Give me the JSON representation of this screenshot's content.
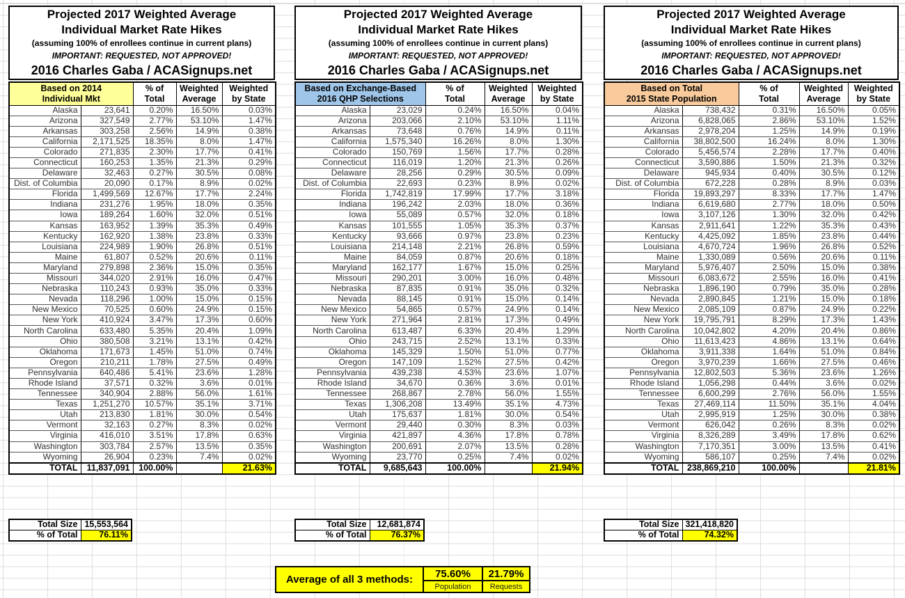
{
  "title_block": {
    "line1": "Projected 2017 Weighted Average",
    "line2": "Individual Market Rate Hikes",
    "line3": "(assuming 100% of enrollees continue in current plans)",
    "line4": "IMPORTANT: REQUESTED, NOT APPROVED!",
    "line5": "2016 Charles Gaba / ACASignups.net"
  },
  "columns": {
    "pct_line1": "% of",
    "pct_line2": "Total",
    "wavg_line1": "Weighted",
    "wavg_line2": "Average",
    "wst_line1": "Weighted",
    "wst_line2": "by State"
  },
  "summary_labels": {
    "total_size": "Total Size",
    "pct_of_total": "% of Total"
  },
  "colors": {
    "highlight": "#FFFF00"
  },
  "tables": [
    {
      "source_line1": "Based on 2014",
      "source_line2": "Individual Mkt",
      "header_color": "#FFFF99",
      "rows": [
        {
          "state": "Alaska",
          "size": "23,641",
          "pct": "0.20%",
          "wavg": "16.50%",
          "wstate": "0.03%"
        },
        {
          "state": "Arizona",
          "size": "327,549",
          "pct": "2.77%",
          "wavg": "53.10%",
          "wstate": "1.47%"
        },
        {
          "state": "Arkansas",
          "size": "303,258",
          "pct": "2.56%",
          "wavg": "14.9%",
          "wstate": "0.38%"
        },
        {
          "state": "California",
          "size": "2,171,525",
          "pct": "18.35%",
          "wavg": "8.0%",
          "wstate": "1.47%"
        },
        {
          "state": "Colorado",
          "size": "271,835",
          "pct": "2.30%",
          "wavg": "17.7%",
          "wstate": "0.41%"
        },
        {
          "state": "Connecticut",
          "size": "160,253",
          "pct": "1.35%",
          "wavg": "21.3%",
          "wstate": "0.29%"
        },
        {
          "state": "Delaware",
          "size": "32,463",
          "pct": "0.27%",
          "wavg": "30.5%",
          "wstate": "0.08%"
        },
        {
          "state": "Dist. of Columbia",
          "size": "20,090",
          "pct": "0.17%",
          "wavg": "8.9%",
          "wstate": "0.02%"
        },
        {
          "state": "Florida",
          "size": "1,499,569",
          "pct": "12.67%",
          "wavg": "17.7%",
          "wstate": "2.24%"
        },
        {
          "state": "Indiana",
          "size": "231,276",
          "pct": "1.95%",
          "wavg": "18.0%",
          "wstate": "0.35%"
        },
        {
          "state": "Iowa",
          "size": "189,264",
          "pct": "1.60%",
          "wavg": "32.0%",
          "wstate": "0.51%"
        },
        {
          "state": "Kansas",
          "size": "163,952",
          "pct": "1.39%",
          "wavg": "35.3%",
          "wstate": "0.49%"
        },
        {
          "state": "Kentucky",
          "size": "162,920",
          "pct": "1.38%",
          "wavg": "23.8%",
          "wstate": "0.33%"
        },
        {
          "state": "Louisiana",
          "size": "224,989",
          "pct": "1.90%",
          "wavg": "26.8%",
          "wstate": "0.51%"
        },
        {
          "state": "Maine",
          "size": "61,807",
          "pct": "0.52%",
          "wavg": "20.6%",
          "wstate": "0.11%"
        },
        {
          "state": "Maryland",
          "size": "279,898",
          "pct": "2.36%",
          "wavg": "15.0%",
          "wstate": "0.35%"
        },
        {
          "state": "Missouri",
          "size": "344,020",
          "pct": "2.91%",
          "wavg": "16.0%",
          "wstate": "0.47%"
        },
        {
          "state": "Nebraska",
          "size": "110,243",
          "pct": "0.93%",
          "wavg": "35.0%",
          "wstate": "0.33%"
        },
        {
          "state": "Nevada",
          "size": "118,296",
          "pct": "1.00%",
          "wavg": "15.0%",
          "wstate": "0.15%"
        },
        {
          "state": "New Mexico",
          "size": "70,525",
          "pct": "0.60%",
          "wavg": "24.9%",
          "wstate": "0.15%"
        },
        {
          "state": "New York",
          "size": "410,924",
          "pct": "3.47%",
          "wavg": "17.3%",
          "wstate": "0.60%"
        },
        {
          "state": "North Carolina",
          "size": "633,480",
          "pct": "5.35%",
          "wavg": "20.4%",
          "wstate": "1.09%"
        },
        {
          "state": "Ohio",
          "size": "380,508",
          "pct": "3.21%",
          "wavg": "13.1%",
          "wstate": "0.42%"
        },
        {
          "state": "Oklahoma",
          "size": "171,673",
          "pct": "1.45%",
          "wavg": "51.0%",
          "wstate": "0.74%"
        },
        {
          "state": "Oregon",
          "size": "210,211",
          "pct": "1.78%",
          "wavg": "27.5%",
          "wstate": "0.49%"
        },
        {
          "state": "Pennsylvania",
          "size": "640,486",
          "pct": "5.41%",
          "wavg": "23.6%",
          "wstate": "1.28%"
        },
        {
          "state": "Rhode Island",
          "size": "37,571",
          "pct": "0.32%",
          "wavg": "3.6%",
          "wstate": "0.01%"
        },
        {
          "state": "Tennessee",
          "size": "340,904",
          "pct": "2.88%",
          "wavg": "56.0%",
          "wstate": "1.61%"
        },
        {
          "state": "Texas",
          "size": "1,251,270",
          "pct": "10.57%",
          "wavg": "35.1%",
          "wstate": "3.71%"
        },
        {
          "state": "Utah",
          "size": "213,830",
          "pct": "1.81%",
          "wavg": "30.0%",
          "wstate": "0.54%"
        },
        {
          "state": "Vermont",
          "size": "32,163",
          "pct": "0.27%",
          "wavg": "8.3%",
          "wstate": "0.02%"
        },
        {
          "state": "Virginia",
          "size": "416,010",
          "pct": "3.51%",
          "wavg": "17.8%",
          "wstate": "0.63%"
        },
        {
          "state": "Washington",
          "size": "303,784",
          "pct": "2.57%",
          "wavg": "13.5%",
          "wstate": "0.35%"
        },
        {
          "state": "Wyoming",
          "size": "26,904",
          "pct": "0.23%",
          "wavg": "7.4%",
          "wstate": "0.02%"
        }
      ],
      "total": {
        "label": "TOTAL",
        "size": "11,837,091",
        "pct": "100.00%",
        "wavg": "",
        "wstate": "21.63%"
      },
      "summary": {
        "total_size": "15,553,564",
        "pct_of_total": "76.11%"
      }
    },
    {
      "source_line1": "Based on Exchange-Based",
      "source_line2": "2016 QHP Selections",
      "header_color": "#9FC5E8",
      "rows": [
        {
          "state": "Alaska",
          "size": "23,029",
          "pct": "0.24%",
          "wavg": "16.50%",
          "wstate": "0.04%"
        },
        {
          "state": "Arizona",
          "size": "203,066",
          "pct": "2.10%",
          "wavg": "53.10%",
          "wstate": "1.11%"
        },
        {
          "state": "Arkansas",
          "size": "73,648",
          "pct": "0.76%",
          "wavg": "14.9%",
          "wstate": "0.11%"
        },
        {
          "state": "California",
          "size": "1,575,340",
          "pct": "16.26%",
          "wavg": "8.0%",
          "wstate": "1.30%"
        },
        {
          "state": "Colorado",
          "size": "150,769",
          "pct": "1.56%",
          "wavg": "17.7%",
          "wstate": "0.28%"
        },
        {
          "state": "Connecticut",
          "size": "116,019",
          "pct": "1.20%",
          "wavg": "21.3%",
          "wstate": "0.26%"
        },
        {
          "state": "Delaware",
          "size": "28,256",
          "pct": "0.29%",
          "wavg": "30.5%",
          "wstate": "0.09%"
        },
        {
          "state": "Dist. of Columbia",
          "size": "22,693",
          "pct": "0.23%",
          "wavg": "8.9%",
          "wstate": "0.02%"
        },
        {
          "state": "Florida",
          "size": "1,742,819",
          "pct": "17.99%",
          "wavg": "17.7%",
          "wstate": "3.18%"
        },
        {
          "state": "Indiana",
          "size": "196,242",
          "pct": "2.03%",
          "wavg": "18.0%",
          "wstate": "0.36%"
        },
        {
          "state": "Iowa",
          "size": "55,089",
          "pct": "0.57%",
          "wavg": "32.0%",
          "wstate": "0.18%"
        },
        {
          "state": "Kansas",
          "size": "101,555",
          "pct": "1.05%",
          "wavg": "35.3%",
          "wstate": "0.37%"
        },
        {
          "state": "Kentucky",
          "size": "93,666",
          "pct": "0.97%",
          "wavg": "23.8%",
          "wstate": "0.23%"
        },
        {
          "state": "Louisiana",
          "size": "214,148",
          "pct": "2.21%",
          "wavg": "26.8%",
          "wstate": "0.59%"
        },
        {
          "state": "Maine",
          "size": "84,059",
          "pct": "0.87%",
          "wavg": "20.6%",
          "wstate": "0.18%"
        },
        {
          "state": "Maryland",
          "size": "162,177",
          "pct": "1.67%",
          "wavg": "15.0%",
          "wstate": "0.25%"
        },
        {
          "state": "Missouri",
          "size": "290,201",
          "pct": "3.00%",
          "wavg": "16.0%",
          "wstate": "0.48%"
        },
        {
          "state": "Nebraska",
          "size": "87,835",
          "pct": "0.91%",
          "wavg": "35.0%",
          "wstate": "0.32%"
        },
        {
          "state": "Nevada",
          "size": "88,145",
          "pct": "0.91%",
          "wavg": "15.0%",
          "wstate": "0.14%"
        },
        {
          "state": "New Mexico",
          "size": "54,865",
          "pct": "0.57%",
          "wavg": "24.9%",
          "wstate": "0.14%"
        },
        {
          "state": "New York",
          "size": "271,964",
          "pct": "2.81%",
          "wavg": "17.3%",
          "wstate": "0.49%"
        },
        {
          "state": "North Carolina",
          "size": "613,487",
          "pct": "6.33%",
          "wavg": "20.4%",
          "wstate": "1.29%"
        },
        {
          "state": "Ohio",
          "size": "243,715",
          "pct": "2.52%",
          "wavg": "13.1%",
          "wstate": "0.33%"
        },
        {
          "state": "Oklahoma",
          "size": "145,329",
          "pct": "1.50%",
          "wavg": "51.0%",
          "wstate": "0.77%"
        },
        {
          "state": "Oregon",
          "size": "147,109",
          "pct": "1.52%",
          "wavg": "27.5%",
          "wstate": "0.42%"
        },
        {
          "state": "Pennsylvania",
          "size": "439,238",
          "pct": "4.53%",
          "wavg": "23.6%",
          "wstate": "1.07%"
        },
        {
          "state": "Rhode Island",
          "size": "34,670",
          "pct": "0.36%",
          "wavg": "3.6%",
          "wstate": "0.01%"
        },
        {
          "state": "Tennessee",
          "size": "268,867",
          "pct": "2.78%",
          "wavg": "56.0%",
          "wstate": "1.55%"
        },
        {
          "state": "Texas",
          "size": "1,306,208",
          "pct": "13.49%",
          "wavg": "35.1%",
          "wstate": "4.73%"
        },
        {
          "state": "Utah",
          "size": "175,637",
          "pct": "1.81%",
          "wavg": "30.0%",
          "wstate": "0.54%"
        },
        {
          "state": "Vermont",
          "size": "29,440",
          "pct": "0.30%",
          "wavg": "8.3%",
          "wstate": "0.03%"
        },
        {
          "state": "Virginia",
          "size": "421,897",
          "pct": "4.36%",
          "wavg": "17.8%",
          "wstate": "0.78%"
        },
        {
          "state": "Washington",
          "size": "200,691",
          "pct": "2.07%",
          "wavg": "13.5%",
          "wstate": "0.28%"
        },
        {
          "state": "Wyoming",
          "size": "23,770",
          "pct": "0.25%",
          "wavg": "7.4%",
          "wstate": "0.02%"
        }
      ],
      "total": {
        "label": "TOTAL",
        "size": "9,685,643",
        "pct": "100.00%",
        "wavg": "",
        "wstate": "21.94%"
      },
      "summary": {
        "total_size": "12,681,874",
        "pct_of_total": "76.37%"
      }
    },
    {
      "source_line1": "Based on Total",
      "source_line2": "2015 State Population",
      "header_color": "#F9CB9C",
      "rows": [
        {
          "state": "Alaska",
          "size": "738,432",
          "pct": "0.31%",
          "wavg": "16.50%",
          "wstate": "0.05%"
        },
        {
          "state": "Arizona",
          "size": "6,828,065",
          "pct": "2.86%",
          "wavg": "53.10%",
          "wstate": "1.52%"
        },
        {
          "state": "Arkansas",
          "size": "2,978,204",
          "pct": "1.25%",
          "wavg": "14.9%",
          "wstate": "0.19%"
        },
        {
          "state": "California",
          "size": "38,802,500",
          "pct": "16.24%",
          "wavg": "8.0%",
          "wstate": "1.30%"
        },
        {
          "state": "Colorado",
          "size": "5,456,574",
          "pct": "2.28%",
          "wavg": "17.7%",
          "wstate": "0.40%"
        },
        {
          "state": "Connecticut",
          "size": "3,590,886",
          "pct": "1.50%",
          "wavg": "21.3%",
          "wstate": "0.32%"
        },
        {
          "state": "Delaware",
          "size": "945,934",
          "pct": "0.40%",
          "wavg": "30.5%",
          "wstate": "0.12%"
        },
        {
          "state": "Dist. of Columbia",
          "size": "672,228",
          "pct": "0.28%",
          "wavg": "8.9%",
          "wstate": "0.03%"
        },
        {
          "state": "Florida",
          "size": "19,893,297",
          "pct": "8.33%",
          "wavg": "17.7%",
          "wstate": "1.47%"
        },
        {
          "state": "Indiana",
          "size": "6,619,680",
          "pct": "2.77%",
          "wavg": "18.0%",
          "wstate": "0.50%"
        },
        {
          "state": "Iowa",
          "size": "3,107,126",
          "pct": "1.30%",
          "wavg": "32.0%",
          "wstate": "0.42%"
        },
        {
          "state": "Kansas",
          "size": "2,911,641",
          "pct": "1.22%",
          "wavg": "35.3%",
          "wstate": "0.43%"
        },
        {
          "state": "Kentucky",
          "size": "4,425,092",
          "pct": "1.85%",
          "wavg": "23.8%",
          "wstate": "0.44%"
        },
        {
          "state": "Louisiana",
          "size": "4,670,724",
          "pct": "1.96%",
          "wavg": "26.8%",
          "wstate": "0.52%"
        },
        {
          "state": "Maine",
          "size": "1,330,089",
          "pct": "0.56%",
          "wavg": "20.6%",
          "wstate": "0.11%"
        },
        {
          "state": "Maryland",
          "size": "5,976,407",
          "pct": "2.50%",
          "wavg": "15.0%",
          "wstate": "0.38%"
        },
        {
          "state": "Missouri",
          "size": "6,083,672",
          "pct": "2.55%",
          "wavg": "16.0%",
          "wstate": "0.41%"
        },
        {
          "state": "Nebraska",
          "size": "1,896,190",
          "pct": "0.79%",
          "wavg": "35.0%",
          "wstate": "0.28%"
        },
        {
          "state": "Nevada",
          "size": "2,890,845",
          "pct": "1.21%",
          "wavg": "15.0%",
          "wstate": "0.18%"
        },
        {
          "state": "New Mexico",
          "size": "2,085,109",
          "pct": "0.87%",
          "wavg": "24.9%",
          "wstate": "0.22%"
        },
        {
          "state": "New York",
          "size": "19,795,791",
          "pct": "8.29%",
          "wavg": "17.3%",
          "wstate": "1.43%"
        },
        {
          "state": "North Carolina",
          "size": "10,042,802",
          "pct": "4.20%",
          "wavg": "20.4%",
          "wstate": "0.86%"
        },
        {
          "state": "Ohio",
          "size": "11,613,423",
          "pct": "4.86%",
          "wavg": "13.1%",
          "wstate": "0.64%"
        },
        {
          "state": "Oklahoma",
          "size": "3,911,338",
          "pct": "1.64%",
          "wavg": "51.0%",
          "wstate": "0.84%"
        },
        {
          "state": "Oregon",
          "size": "3,970,239",
          "pct": "1.66%",
          "wavg": "27.5%",
          "wstate": "0.46%"
        },
        {
          "state": "Pennsylvania",
          "size": "12,802,503",
          "pct": "5.36%",
          "wavg": "23.6%",
          "wstate": "1.26%"
        },
        {
          "state": "Rhode Island",
          "size": "1,056,298",
          "pct": "0.44%",
          "wavg": "3.6%",
          "wstate": "0.02%"
        },
        {
          "state": "Tennessee",
          "size": "6,600,299",
          "pct": "2.76%",
          "wavg": "56.0%",
          "wstate": "1.55%"
        },
        {
          "state": "Texas",
          "size": "27,469,114",
          "pct": "11.50%",
          "wavg": "35.1%",
          "wstate": "4.04%"
        },
        {
          "state": "Utah",
          "size": "2,995,919",
          "pct": "1.25%",
          "wavg": "30.0%",
          "wstate": "0.38%"
        },
        {
          "state": "Vermont",
          "size": "626,042",
          "pct": "0.26%",
          "wavg": "8.3%",
          "wstate": "0.02%"
        },
        {
          "state": "Virginia",
          "size": "8,326,289",
          "pct": "3.49%",
          "wavg": "17.8%",
          "wstate": "0.62%"
        },
        {
          "state": "Washington",
          "size": "7,170,351",
          "pct": "3.00%",
          "wavg": "13.5%",
          "wstate": "0.41%"
        },
        {
          "state": "Wyoming",
          "size": "586,107",
          "pct": "0.25%",
          "wavg": "7.4%",
          "wstate": "0.02%"
        }
      ],
      "total": {
        "label": "TOTAL",
        "size": "238,869,210",
        "pct": "100.00%",
        "wavg": "",
        "wstate": "21.81%"
      },
      "summary": {
        "total_size": "321,418,820",
        "pct_of_total": "74.32%"
      }
    }
  ],
  "average_block": {
    "label": "Average of all 3 methods:",
    "population_value": "75.60%",
    "population_label": "Population",
    "requests_value": "21.79%",
    "requests_label": "Requests"
  }
}
